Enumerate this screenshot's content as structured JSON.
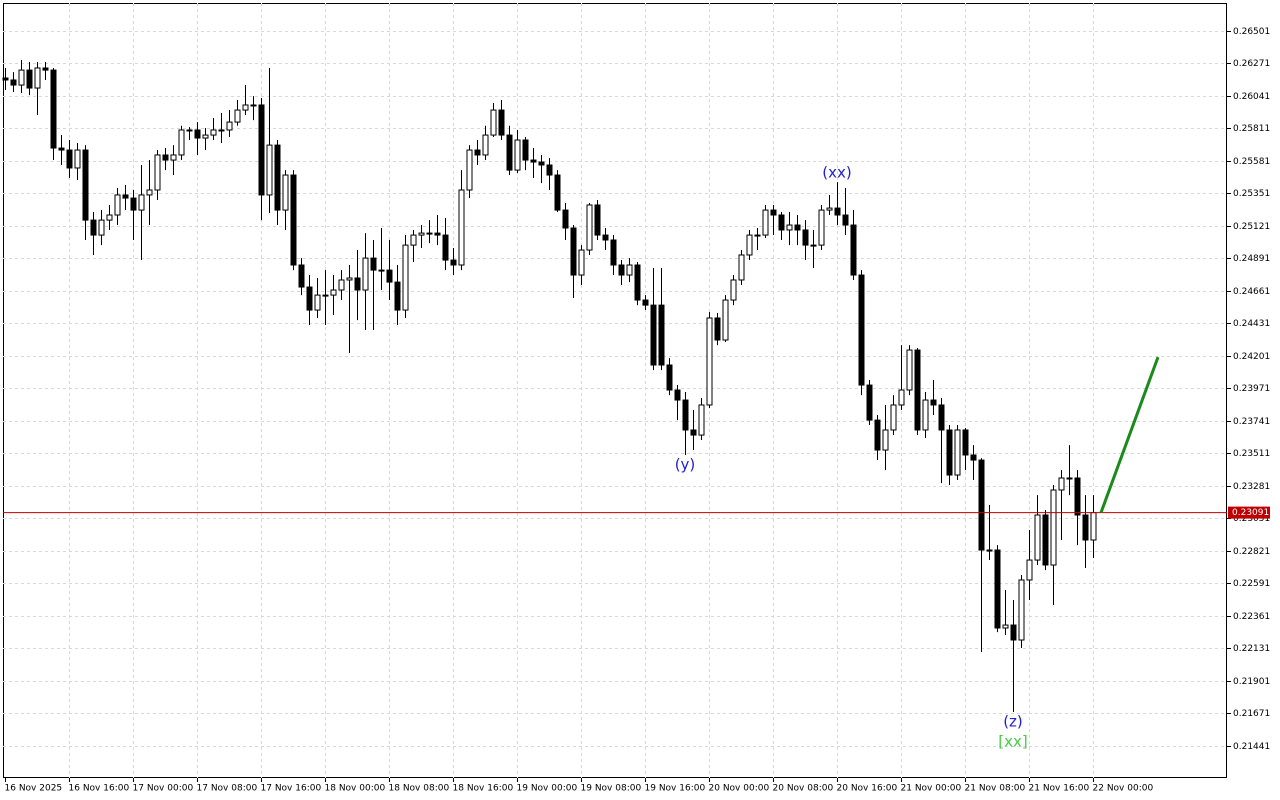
{
  "chart_data": {
    "type": "candlestick",
    "categories": [
      "16 Nov 2025",
      null,
      null,
      null,
      null,
      null,
      null,
      null,
      "16 Nov 16:00",
      null,
      null,
      null,
      null,
      null,
      null,
      null,
      "17 Nov 00:00",
      null,
      null,
      null,
      null,
      null,
      null,
      null,
      "17 Nov 08:00",
      null,
      null,
      null,
      null,
      null,
      null,
      null,
      "17 Nov 16:00",
      null,
      null,
      null,
      null,
      null,
      null,
      null,
      "18 Nov 00:00",
      null,
      null,
      null,
      null,
      null,
      null,
      null,
      "18 Nov 08:00",
      null,
      null,
      null,
      null,
      null,
      null,
      null,
      "18 Nov 16:00",
      null,
      null,
      null,
      null,
      null,
      null,
      null,
      "19 Nov 00:00",
      null,
      null,
      null,
      null,
      null,
      null,
      null,
      "19 Nov 08:00",
      null,
      null,
      null,
      null,
      null,
      null,
      null,
      "19 Nov 16:00",
      null,
      null,
      null,
      null,
      null,
      null,
      null,
      "20 Nov 00:00",
      null,
      null,
      null,
      null,
      null,
      null,
      null,
      "20 Nov 08:00",
      null,
      null,
      null,
      null,
      null,
      null,
      null,
      "20 Nov 16:00",
      null,
      null,
      null,
      null,
      null,
      null,
      null,
      "21 Nov 00:00",
      null,
      null,
      null,
      null,
      null,
      null,
      null,
      "21 Nov 08:00",
      null,
      null,
      null,
      null,
      null,
      null,
      null,
      "21 Nov 16:00",
      null,
      null,
      null,
      null,
      null,
      null,
      null,
      "22 Nov 00:00"
    ],
    "ohlc": [
      [
        0.26168,
        0.26239,
        0.26083,
        0.26154
      ],
      [
        0.26154,
        0.2621,
        0.26069,
        0.26118
      ],
      [
        0.26118,
        0.26295,
        0.26062,
        0.26224
      ],
      [
        0.26224,
        0.26281,
        0.26047,
        0.26097
      ],
      [
        0.26097,
        0.26281,
        0.25906,
        0.26239
      ],
      [
        0.26239,
        0.26281,
        0.26154,
        0.26224
      ],
      [
        0.26224,
        0.26239,
        0.25587,
        0.25672
      ],
      [
        0.25672,
        0.25764,
        0.25552,
        0.25658
      ],
      [
        0.25658,
        0.25729,
        0.2546,
        0.25531
      ],
      [
        0.25531,
        0.25708,
        0.25446,
        0.25658
      ],
      [
        0.25658,
        0.25693,
        0.25021,
        0.25162
      ],
      [
        0.25162,
        0.25219,
        0.24915,
        0.25056
      ],
      [
        0.25056,
        0.25233,
        0.24985,
        0.25162
      ],
      [
        0.25162,
        0.25269,
        0.25092,
        0.25198
      ],
      [
        0.25198,
        0.25389,
        0.25127,
        0.2534
      ],
      [
        0.2534,
        0.2541,
        0.25233,
        0.25318
      ],
      [
        0.25318,
        0.25375,
        0.25021,
        0.25233
      ],
      [
        0.25233,
        0.25552,
        0.24879,
        0.2534
      ],
      [
        0.2534,
        0.25587,
        0.25127,
        0.25375
      ],
      [
        0.25375,
        0.25658,
        0.25304,
        0.25623
      ],
      [
        0.25623,
        0.25672,
        0.25516,
        0.25587
      ],
      [
        0.25587,
        0.25693,
        0.25481,
        0.25623
      ],
      [
        0.25623,
        0.2583,
        0.25587,
        0.258
      ],
      [
        0.258,
        0.2582,
        0.25729,
        0.258
      ],
      [
        0.258,
        0.25856,
        0.25623,
        0.25743
      ],
      [
        0.25743,
        0.25814,
        0.25658,
        0.25764
      ],
      [
        0.25764,
        0.25885,
        0.25729,
        0.258
      ],
      [
        0.258,
        0.2592,
        0.25708,
        0.258
      ],
      [
        0.258,
        0.25941,
        0.2575,
        0.25856
      ],
      [
        0.25856,
        0.26012,
        0.2583,
        0.25941
      ],
      [
        0.25941,
        0.26118,
        0.25906,
        0.25977
      ],
      [
        0.25977,
        0.2604,
        0.2587,
        0.25977
      ],
      [
        0.25977,
        0.26026,
        0.25162,
        0.2534
      ],
      [
        0.2534,
        0.26239,
        0.25212,
        0.25693
      ],
      [
        0.25693,
        0.25729,
        0.25127,
        0.25233
      ],
      [
        0.25233,
        0.25516,
        0.25092,
        0.25481
      ],
      [
        0.25481,
        0.25516,
        0.24808,
        0.24844
      ],
      [
        0.24844,
        0.24893,
        0.24631,
        0.24688
      ],
      [
        0.24688,
        0.24773,
        0.24419,
        0.24525
      ],
      [
        0.24525,
        0.24752,
        0.24469,
        0.24631
      ],
      [
        0.24631,
        0.24808,
        0.24419,
        0.24631
      ],
      [
        0.24631,
        0.24773,
        0.2449,
        0.24667
      ],
      [
        0.24667,
        0.24808,
        0.24596,
        0.24738
      ],
      [
        0.24738,
        0.24844,
        0.24221,
        0.24752
      ],
      [
        0.24752,
        0.2495,
        0.24454,
        0.24667
      ],
      [
        0.24667,
        0.2507,
        0.24384,
        0.24893
      ],
      [
        0.24893,
        0.25021,
        0.24384,
        0.24808
      ],
      [
        0.24808,
        0.25106,
        0.24667,
        0.24808
      ],
      [
        0.24808,
        0.25021,
        0.24596,
        0.24723
      ],
      [
        0.24723,
        0.24844,
        0.24419,
        0.24525
      ],
      [
        0.24525,
        0.25056,
        0.24469,
        0.24985
      ],
      [
        0.24985,
        0.25092,
        0.24865,
        0.25056
      ],
      [
        0.25056,
        0.25127,
        0.24964,
        0.2507
      ],
      [
        0.2507,
        0.25162,
        0.24999,
        0.2507
      ],
      [
        0.2507,
        0.25198,
        0.24985,
        0.25056
      ],
      [
        0.25056,
        0.25177,
        0.24808,
        0.24879
      ],
      [
        0.24879,
        0.24964,
        0.24773,
        0.24844
      ],
      [
        0.24844,
        0.25516,
        0.24808,
        0.25375
      ],
      [
        0.25375,
        0.25693,
        0.25318,
        0.25658
      ],
      [
        0.25658,
        0.25729,
        0.25552,
        0.25623
      ],
      [
        0.25623,
        0.2583,
        0.25587,
        0.25764
      ],
      [
        0.25764,
        0.25991,
        0.2575,
        0.25941
      ],
      [
        0.25941,
        0.26012,
        0.25729,
        0.25764
      ],
      [
        0.25764,
        0.2583,
        0.25481,
        0.25516
      ],
      [
        0.25516,
        0.258,
        0.25495,
        0.25729
      ],
      [
        0.25729,
        0.2575,
        0.25516,
        0.25587
      ],
      [
        0.25587,
        0.25672,
        0.2546,
        0.25573
      ],
      [
        0.25573,
        0.25623,
        0.25424,
        0.25552
      ],
      [
        0.25552,
        0.25601,
        0.25375,
        0.25481
      ],
      [
        0.25481,
        0.25516,
        0.25219,
        0.25233
      ],
      [
        0.25233,
        0.25283,
        0.25021,
        0.25106
      ],
      [
        0.25106,
        0.25127,
        0.2461,
        0.24773
      ],
      [
        0.24773,
        0.24985,
        0.24702,
        0.2495
      ],
      [
        0.2495,
        0.25283,
        0.24915,
        0.25269
      ],
      [
        0.25269,
        0.25304,
        0.25021,
        0.25056
      ],
      [
        0.25056,
        0.25106,
        0.2495,
        0.25021
      ],
      [
        0.25021,
        0.25056,
        0.24773,
        0.24844
      ],
      [
        0.24844,
        0.24879,
        0.24702,
        0.24773
      ],
      [
        0.24773,
        0.24893,
        0.24723,
        0.24844
      ],
      [
        0.24844,
        0.24865,
        0.2456,
        0.24596
      ],
      [
        0.24596,
        0.24631,
        0.24525,
        0.2456
      ],
      [
        0.2456,
        0.24823,
        0.241,
        0.24136
      ],
      [
        0.2456,
        0.24823,
        0.241,
        0.24136
      ],
      [
        0.24136,
        0.24185,
        0.23923,
        0.23959
      ],
      [
        0.23959,
        0.23994,
        0.23746,
        0.23888
      ],
      [
        0.23888,
        0.23945,
        0.23499,
        0.23676
      ],
      [
        0.23676,
        0.23817,
        0.23534,
        0.2364
      ],
      [
        0.2364,
        0.23902,
        0.23605,
        0.23853
      ],
      [
        0.23853,
        0.24511,
        0.23831,
        0.24469
      ],
      [
        0.24469,
        0.24504,
        0.24277,
        0.24313
      ],
      [
        0.24313,
        0.24631,
        0.24299,
        0.24596
      ],
      [
        0.24596,
        0.24773,
        0.2456,
        0.24738
      ],
      [
        0.24738,
        0.2495,
        0.24702,
        0.24915
      ],
      [
        0.24915,
        0.25092,
        0.24879,
        0.25056
      ],
      [
        0.25056,
        0.25106,
        0.2495,
        0.25056
      ],
      [
        0.25056,
        0.25269,
        0.25035,
        0.25233
      ],
      [
        0.25233,
        0.25269,
        0.25056,
        0.25198
      ],
      [
        0.25198,
        0.25219,
        0.25021,
        0.25092
      ],
      [
        0.25092,
        0.25219,
        0.24985,
        0.25127
      ],
      [
        0.25127,
        0.25198,
        0.24985,
        0.25092
      ],
      [
        0.25092,
        0.25162,
        0.24879,
        0.24985
      ],
      [
        0.24985,
        0.25092,
        0.24823,
        0.24985
      ],
      [
        0.24985,
        0.25269,
        0.2495,
        0.25233
      ],
      [
        0.25233,
        0.2534,
        0.25198,
        0.25247
      ],
      [
        0.25247,
        0.25431,
        0.25127,
        0.25198
      ],
      [
        0.25198,
        0.25389,
        0.25056,
        0.25127
      ],
      [
        0.25127,
        0.25233,
        0.24738,
        0.24773
      ],
      [
        0.24773,
        0.24808,
        0.23923,
        0.23994
      ],
      [
        0.23994,
        0.2403,
        0.23711,
        0.23746
      ],
      [
        0.23746,
        0.23782,
        0.23463,
        0.23534
      ],
      [
        0.23534,
        0.23853,
        0.23392,
        0.23676
      ],
      [
        0.23676,
        0.23923,
        0.2364,
        0.23853
      ],
      [
        0.23853,
        0.24277,
        0.23817,
        0.23959
      ],
      [
        0.23959,
        0.24277,
        0.23923,
        0.24242
      ],
      [
        0.24242,
        0.24256,
        0.2364,
        0.23676
      ],
      [
        0.23676,
        0.23945,
        0.23619,
        0.23888
      ],
      [
        0.23888,
        0.2403,
        0.23782,
        0.23853
      ],
      [
        0.23853,
        0.23902,
        0.233,
        0.23676
      ],
      [
        0.23676,
        0.23711,
        0.23286,
        0.23357
      ],
      [
        0.23357,
        0.23711,
        0.23322,
        0.23676
      ],
      [
        0.23676,
        0.2369,
        0.23392,
        0.23499
      ],
      [
        0.23499,
        0.23569,
        0.23322,
        0.23463
      ],
      [
        0.23463,
        0.23477,
        0.22104,
        0.22826
      ],
      [
        0.22826,
        0.23145,
        0.22755,
        0.22826
      ],
      [
        0.22826,
        0.22861,
        0.22245,
        0.22274
      ],
      [
        0.22274,
        0.22543,
        0.22224,
        0.22295
      ],
      [
        0.22295,
        0.22472,
        0.21679,
        0.22189
      ],
      [
        0.22189,
        0.22649,
        0.22132,
        0.22614
      ],
      [
        0.22614,
        0.22968,
        0.22472,
        0.22755
      ],
      [
        0.22755,
        0.23215,
        0.2272,
        0.23074
      ],
      [
        0.23074,
        0.23109,
        0.22684,
        0.2272
      ],
      [
        0.2272,
        0.23286,
        0.22437,
        0.23251
      ],
      [
        0.23251,
        0.23392,
        0.22897,
        0.23336
      ],
      [
        0.23336,
        0.23569,
        0.23215,
        0.23336
      ],
      [
        0.23336,
        0.23392,
        0.22861,
        0.23074
      ],
      [
        0.23074,
        0.23215,
        0.22699,
        0.22897
      ],
      [
        0.22897,
        0.23215,
        0.2277,
        0.23091
      ]
    ],
    "up_color": "#ffffff",
    "down_color": "#000000",
    "edge_color": "#000000",
    "ylim": [
      0.21212,
      0.26699
    ],
    "yticks": [
      0.26501,
      0.26271,
      0.26041,
      0.25811,
      0.25581,
      0.25351,
      0.25121,
      0.24891,
      0.24661,
      0.24431,
      0.24201,
      0.23971,
      0.23741,
      0.23511,
      0.23281,
      0.23051,
      0.22821,
      0.22591,
      0.22361,
      0.22131,
      0.21901,
      0.21671,
      0.21441
    ],
    "grid": true,
    "current_price": 0.23091,
    "current_price_color": "#c00000",
    "forecast": 0.24192,
    "forecast_color": "#1a8a1a",
    "annotations": [
      {
        "text": "(xx)",
        "color": "#2020d0"
      },
      {
        "text": "(y)",
        "color": "#2020d0"
      },
      {
        "text": "(z)",
        "color": "#2020d0"
      },
      {
        "text": "[xx]",
        "color": "#44cc44"
      }
    ]
  }
}
